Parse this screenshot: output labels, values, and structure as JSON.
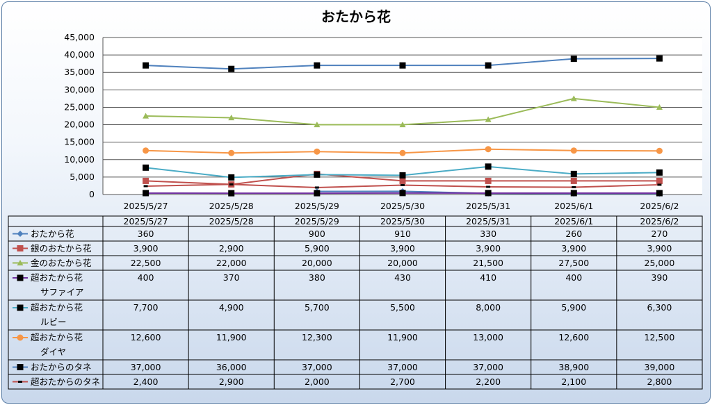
{
  "chart_data": {
    "type": "line",
    "title": "おたから花",
    "ylim": [
      0,
      45000
    ],
    "yticks": [
      0,
      5000,
      10000,
      15000,
      20000,
      25000,
      30000,
      35000,
      40000,
      45000
    ],
    "ytick_labels": [
      "0",
      "5,000",
      "10,000",
      "15,000",
      "20,000",
      "25,000",
      "30,000",
      "35,000",
      "40,000",
      "45,000"
    ],
    "categories": [
      "2025/5/27",
      "2025/5/28",
      "2025/5/29",
      "2025/5/30",
      "2025/5/31",
      "2025/6/1",
      "2025/6/2"
    ],
    "grid": true,
    "legend": "data-table",
    "series": [
      {
        "name": "おたから花",
        "color": "#4f81bd",
        "marker": "diamond",
        "values": [
          360,
          null,
          900,
          910,
          330,
          260,
          270
        ],
        "labels": [
          "360",
          "",
          "900",
          "910",
          "330",
          "260",
          "270"
        ]
      },
      {
        "name": "銀のおたから花",
        "color": "#c0504d",
        "marker": "square",
        "values": [
          3900,
          2900,
          5900,
          3900,
          3900,
          3900,
          3900
        ],
        "labels": [
          "3,900",
          "2,900",
          "5,900",
          "3,900",
          "3,900",
          "3,900",
          "3,900"
        ]
      },
      {
        "name": "金のおたから花",
        "color": "#9bbb59",
        "marker": "triangle",
        "values": [
          22500,
          22000,
          20000,
          20000,
          21500,
          27500,
          25000
        ],
        "labels": [
          "22,500",
          "22,000",
          "20,000",
          "20,000",
          "21,500",
          "27,500",
          "25,000"
        ]
      },
      {
        "name": "超おたから花サファイア",
        "name_lines": [
          "超おたから花",
          "サファイア"
        ],
        "color": "#7030a0",
        "marker": "square-black",
        "values": [
          400,
          370,
          380,
          430,
          410,
          400,
          390
        ],
        "labels": [
          "400",
          "370",
          "380",
          "430",
          "410",
          "400",
          "390"
        ]
      },
      {
        "name": "超おたから花ルビー",
        "name_lines": [
          "超おたから花",
          "ルビー"
        ],
        "color": "#4bacc6",
        "marker": "square-black",
        "values": [
          7700,
          4900,
          5700,
          5500,
          8000,
          5900,
          6300
        ],
        "labels": [
          "7,700",
          "4,900",
          "5,700",
          "5,500",
          "8,000",
          "5,900",
          "6,300"
        ]
      },
      {
        "name": "超おたから花ダイヤ",
        "name_lines": [
          "超おたから花",
          "ダイヤ"
        ],
        "color": "#f79646",
        "marker": "circle",
        "values": [
          12600,
          11900,
          12300,
          11900,
          13000,
          12600,
          12500
        ],
        "labels": [
          "12,600",
          "11,900",
          "12,300",
          "11,900",
          "13,000",
          "12,600",
          "12,500"
        ]
      },
      {
        "name": "おたからのタネ",
        "color": "#4f81bd",
        "marker": "square-black",
        "values": [
          37000,
          36000,
          37000,
          37000,
          37000,
          38900,
          39000
        ],
        "labels": [
          "37,000",
          "36,000",
          "37,000",
          "37,000",
          "37,000",
          "38,900",
          "39,000"
        ]
      },
      {
        "name": "超おたからのタネ",
        "color": "#c0504d",
        "marker": "dash",
        "values": [
          2400,
          2900,
          2000,
          2700,
          2200,
          2100,
          2800
        ],
        "labels": [
          "2,400",
          "2,900",
          "2,000",
          "2,700",
          "2,200",
          "2,100",
          "2,800"
        ]
      }
    ]
  }
}
